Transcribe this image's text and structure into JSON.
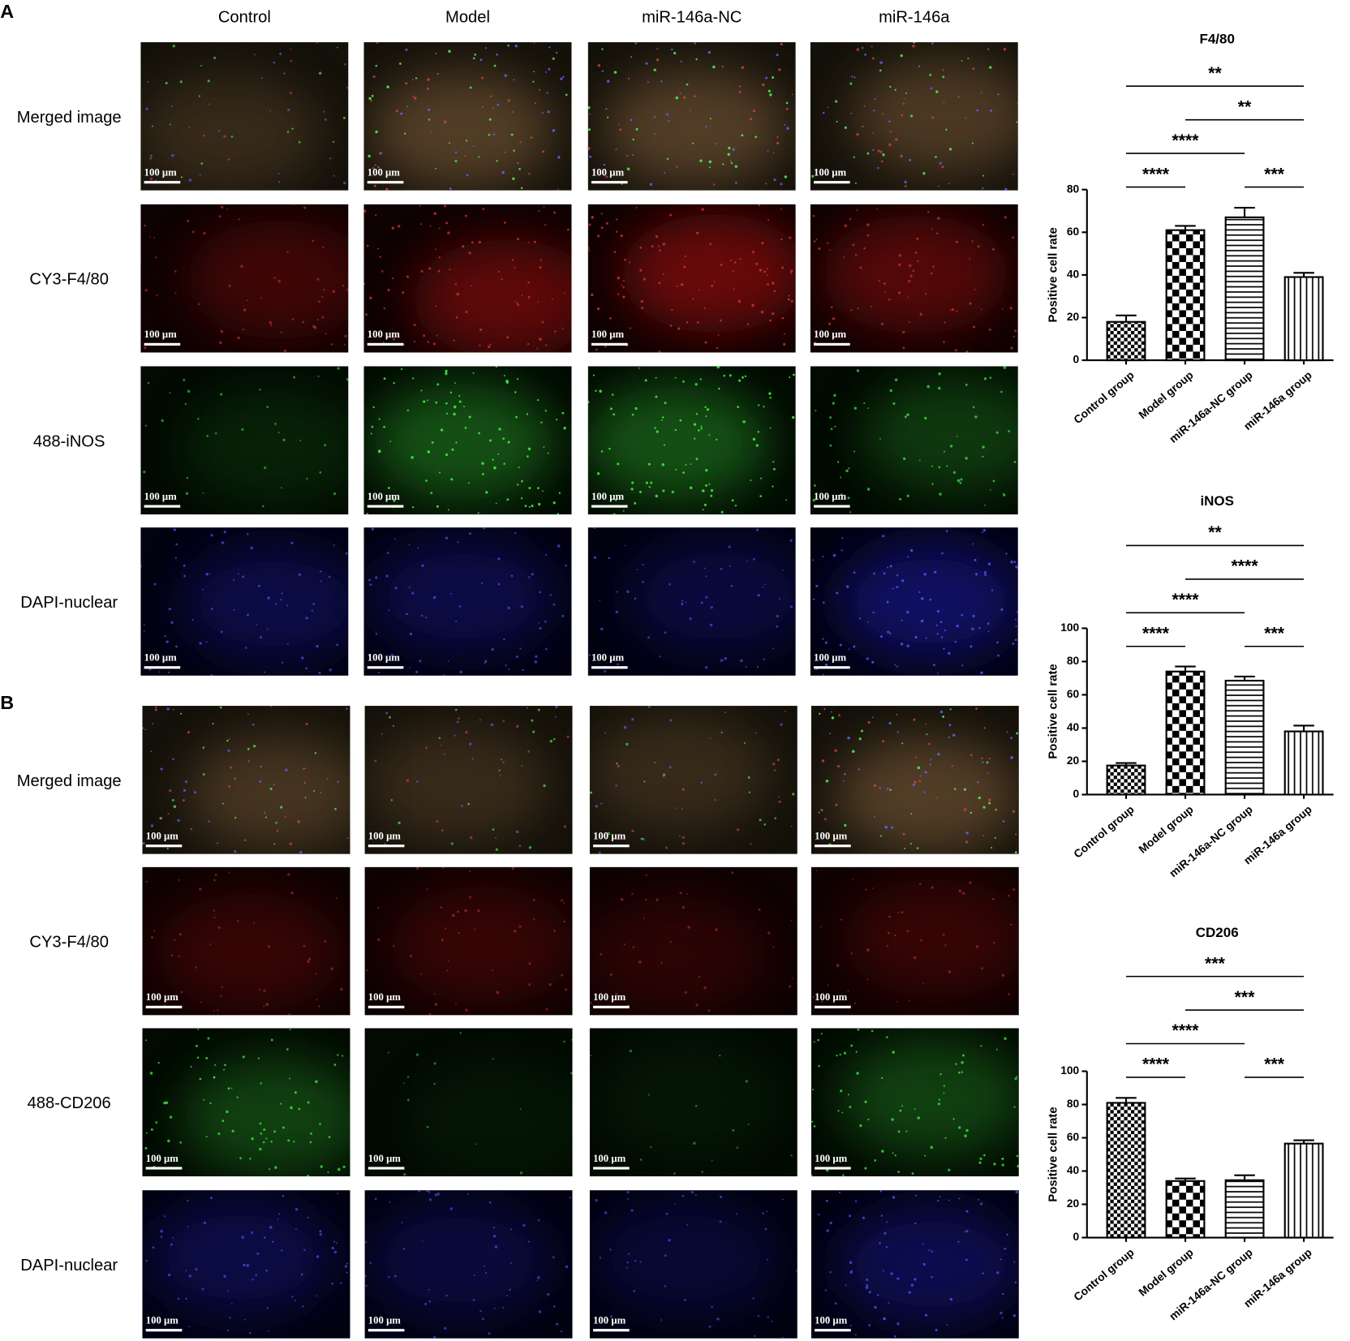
{
  "panel_labels": [
    "A",
    "B"
  ],
  "column_headers": [
    "Control",
    "Model",
    "miR-146a-NC",
    "miR-146a"
  ],
  "panel_a_rows": [
    "Merged image",
    "CY3-F4/80",
    "488-iNOS",
    "DAPI-nuclear"
  ],
  "panel_b_rows": [
    "Merged image",
    "CY3-F4/80",
    "488-CD206",
    "DAPI-nuclear"
  ],
  "scale_bar_label": "100 μm",
  "chart_data": [
    {
      "type": "bar",
      "title": "F4/80",
      "y_label": "Positive cell rate",
      "categories": [
        "Control group",
        "Model group",
        "miR-146a-NC group",
        "miR-146a group"
      ],
      "values": [
        18,
        61,
        67,
        39
      ],
      "errors": [
        3,
        2,
        4.5,
        2
      ],
      "color": "#000000",
      "bar_patterns": [
        "fine-checker",
        "checker",
        "horizontal-stripes",
        "vertical-stripes"
      ],
      "ylim": [
        0,
        80
      ],
      "yticks": [
        0,
        20,
        40,
        60,
        80
      ],
      "annotations": [
        {
          "text": "**",
          "between": [
            "Control group",
            "miR-146a group"
          ]
        },
        {
          "text": "**",
          "between": [
            "Model group",
            "miR-146a group"
          ]
        },
        {
          "text": "****",
          "between": [
            "Control group",
            "miR-146a-NC group"
          ]
        },
        {
          "text": "****",
          "between": [
            "Control group",
            "Model group"
          ]
        },
        {
          "text": "***",
          "between": [
            "miR-146a-NC group",
            "miR-146a group"
          ]
        }
      ]
    },
    {
      "type": "bar",
      "title": "iNOS",
      "y_label": "Positive cell rate",
      "categories": [
        "Control group",
        "Model group",
        "miR-146a-NC group",
        "miR-146a group"
      ],
      "values": [
        17.5,
        74,
        68.5,
        38
      ],
      "errors": [
        1.5,
        3,
        2.5,
        3.5
      ],
      "color": "#000000",
      "bar_patterns": [
        "fine-checker",
        "checker",
        "horizontal-stripes",
        "vertical-stripes"
      ],
      "ylim": [
        0,
        100
      ],
      "yticks": [
        0,
        20,
        40,
        60,
        80,
        100
      ],
      "annotations": [
        {
          "text": "**",
          "between": [
            "Control group",
            "miR-146a group"
          ]
        },
        {
          "text": "****",
          "between": [
            "Model group",
            "miR-146a group"
          ]
        },
        {
          "text": "****",
          "between": [
            "Control group",
            "miR-146a-NC group"
          ]
        },
        {
          "text": "****",
          "between": [
            "Control group",
            "Model group"
          ]
        },
        {
          "text": "***",
          "between": [
            "miR-146a-NC group",
            "miR-146a group"
          ]
        }
      ]
    },
    {
      "type": "bar",
      "title": "CD206",
      "y_label": "Positive cell rate",
      "categories": [
        "Control group",
        "Model group",
        "miR-146a-NC group",
        "miR-146a group"
      ],
      "values": [
        81,
        34,
        34.5,
        56.5
      ],
      "errors": [
        3,
        1.5,
        3,
        2
      ],
      "color": "#000000",
      "bar_patterns": [
        "fine-checker",
        "checker",
        "horizontal-stripes",
        "vertical-stripes"
      ],
      "ylim": [
        0,
        100
      ],
      "yticks": [
        0,
        20,
        40,
        60,
        80,
        100
      ],
      "annotations": [
        {
          "text": "***",
          "between": [
            "Control group",
            "miR-146a group"
          ]
        },
        {
          "text": "***",
          "between": [
            "Model group",
            "miR-146a group"
          ]
        },
        {
          "text": "****",
          "between": [
            "Control group",
            "miR-146a-NC group"
          ]
        },
        {
          "text": "****",
          "between": [
            "Control group",
            "Model group"
          ]
        },
        {
          "text": "***",
          "between": [
            "miR-146a-NC group",
            "miR-146a group"
          ]
        }
      ]
    }
  ]
}
